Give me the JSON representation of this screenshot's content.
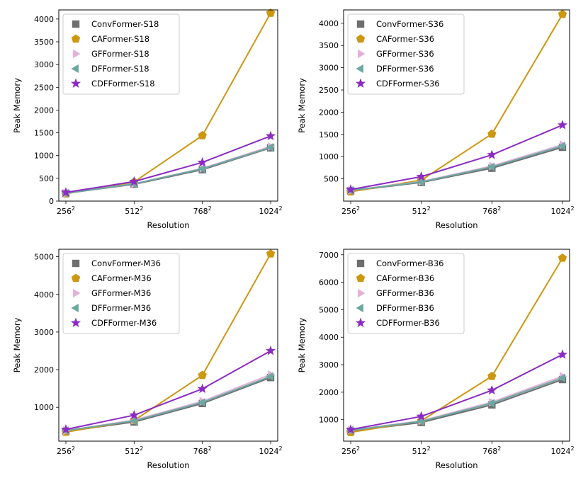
{
  "chart_data": [
    {
      "type": "line",
      "title": "",
      "xlabel": "Resolution",
      "ylabel": "Peak Memory",
      "x_base": [
        256,
        512,
        768,
        1024
      ],
      "x_exponent": "2",
      "ylim": [
        0,
        4200
      ],
      "yticks": [
        0,
        500,
        1000,
        1500,
        2000,
        2500,
        3000,
        3500,
        4000
      ],
      "legend_position": "top-left",
      "series": [
        {
          "name": "ConvFormer-S18",
          "color": "#6e6e6e",
          "marker": "square",
          "values": [
            170,
            370,
            690,
            1170
          ]
        },
        {
          "name": "CAFormer-S18",
          "color": "#cc9711",
          "marker": "pentagon",
          "values": [
            160,
            420,
            1440,
            4130
          ]
        },
        {
          "name": "GFFormer-S18",
          "color": "#e4b0d9",
          "marker": "triangle-right",
          "values": [
            170,
            380,
            720,
            1200
          ]
        },
        {
          "name": "DFFormer-S18",
          "color": "#6ba8a2",
          "marker": "triangle-left",
          "values": [
            170,
            380,
            710,
            1180
          ]
        },
        {
          "name": "CDFFormer-S18",
          "color": "#8b2bc4",
          "marker": "star",
          "values": [
            190,
            430,
            850,
            1430
          ]
        }
      ]
    },
    {
      "type": "line",
      "title": "",
      "xlabel": "Resolution",
      "ylabel": "Peak Memory",
      "x_base": [
        256,
        512,
        768,
        1024
      ],
      "x_exponent": "2",
      "ylim": [
        0,
        4300
      ],
      "yticks": [
        500,
        1000,
        1500,
        2000,
        2500,
        3000,
        3500,
        4000
      ],
      "legend_position": "top-left",
      "series": [
        {
          "name": "ConvFormer-S36",
          "color": "#6e6e6e",
          "marker": "square",
          "values": [
            230,
            420,
            740,
            1210
          ]
        },
        {
          "name": "CAFormer-S36",
          "color": "#cc9711",
          "marker": "pentagon",
          "values": [
            210,
            470,
            1510,
            4200
          ]
        },
        {
          "name": "GFFormer-S36",
          "color": "#e4b0d9",
          "marker": "triangle-right",
          "values": [
            240,
            440,
            790,
            1270
          ]
        },
        {
          "name": "DFFormer-S36",
          "color": "#6ba8a2",
          "marker": "triangle-left",
          "values": [
            240,
            430,
            770,
            1240
          ]
        },
        {
          "name": "CDFFormer-S36",
          "color": "#8b2bc4",
          "marker": "star",
          "values": [
            260,
            550,
            1040,
            1710
          ]
        }
      ]
    },
    {
      "type": "line",
      "title": "",
      "xlabel": "Resolution",
      "ylabel": "Peak Memory",
      "x_base": [
        256,
        512,
        768,
        1024
      ],
      "x_exponent": "2",
      "ylim": [
        100,
        5200
      ],
      "yticks": [
        1000,
        2000,
        3000,
        4000,
        5000
      ],
      "legend_position": "top-left",
      "series": [
        {
          "name": "ConvFormer-M36",
          "color": "#6e6e6e",
          "marker": "square",
          "values": [
            360,
            610,
            1100,
            1790
          ]
        },
        {
          "name": "CAFormer-M36",
          "color": "#cc9711",
          "marker": "pentagon",
          "values": [
            340,
            650,
            1850,
            5080
          ]
        },
        {
          "name": "GFFormer-M36",
          "color": "#e4b0d9",
          "marker": "triangle-right",
          "values": [
            380,
            660,
            1160,
            1870
          ]
        },
        {
          "name": "DFFormer-M36",
          "color": "#6ba8a2",
          "marker": "triangle-left",
          "values": [
            380,
            640,
            1130,
            1820
          ]
        },
        {
          "name": "CDFFormer-M36",
          "color": "#8b2bc4",
          "marker": "star",
          "values": [
            410,
            790,
            1490,
            2500
          ]
        }
      ]
    },
    {
      "type": "line",
      "title": "",
      "xlabel": "Resolution",
      "ylabel": "Peak Memory",
      "x_base": [
        256,
        512,
        768,
        1024
      ],
      "x_exponent": "2",
      "ylim": [
        220,
        7200
      ],
      "yticks": [
        1000,
        2000,
        3000,
        4000,
        5000,
        6000,
        7000
      ],
      "legend_position": "top-left",
      "series": [
        {
          "name": "ConvFormer-B36",
          "color": "#6e6e6e",
          "marker": "square",
          "values": [
            580,
            900,
            1540,
            2460
          ]
        },
        {
          "name": "CAFormer-B36",
          "color": "#cc9711",
          "marker": "pentagon",
          "values": [
            540,
            960,
            2580,
            6880
          ]
        },
        {
          "name": "GFFormer-B36",
          "color": "#e4b0d9",
          "marker": "triangle-right",
          "values": [
            620,
            960,
            1640,
            2580
          ]
        },
        {
          "name": "DFFormer-B36",
          "color": "#6ba8a2",
          "marker": "triangle-left",
          "values": [
            610,
            940,
            1600,
            2520
          ]
        },
        {
          "name": "CDFFormer-B36",
          "color": "#8b2bc4",
          "marker": "star",
          "values": [
            640,
            1120,
            2070,
            3370
          ]
        }
      ]
    }
  ]
}
